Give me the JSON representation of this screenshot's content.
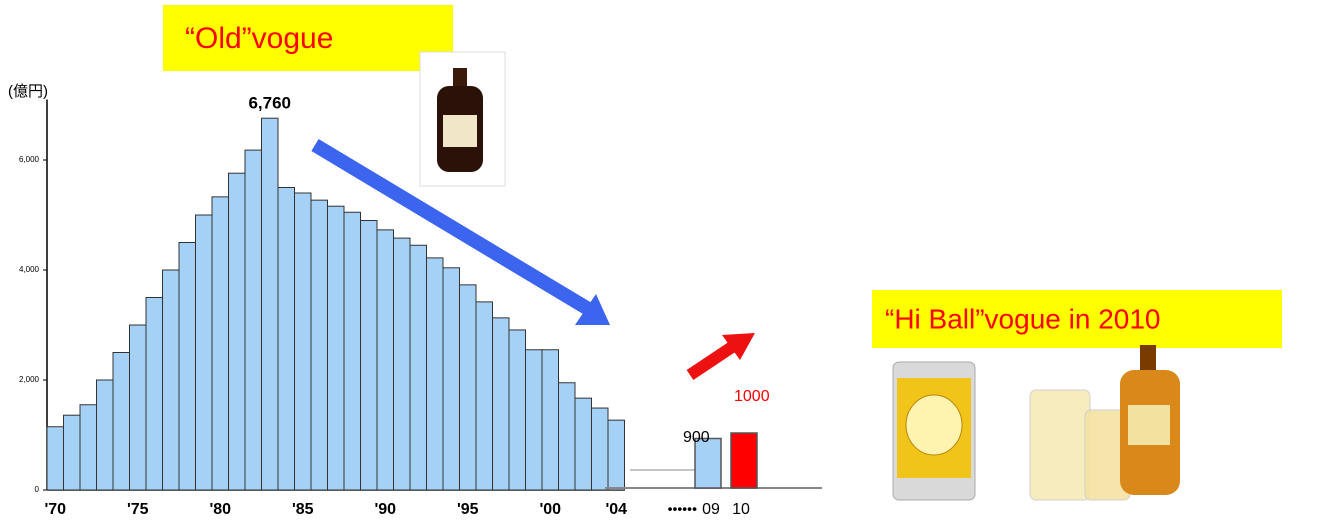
{
  "chart_data": [
    {
      "type": "bar",
      "title": "“Old”vogue",
      "y_label": "(億円)",
      "categories": [
        "'70",
        null,
        null,
        null,
        null,
        "'75",
        null,
        null,
        null,
        null,
        "'80",
        null,
        null,
        null,
        null,
        "'85",
        null,
        null,
        null,
        null,
        "'90",
        null,
        null,
        null,
        null,
        "'95",
        null,
        null,
        null,
        null,
        "'00",
        null,
        null,
        null,
        "'04"
      ],
      "values": [
        1150,
        1360,
        1550,
        2000,
        2500,
        3000,
        3500,
        4000,
        4500,
        5000,
        5330,
        5760,
        6180,
        6760,
        5500,
        5400,
        5270,
        5160,
        5050,
        4900,
        4730,
        4580,
        4450,
        4220,
        4040,
        3730,
        3420,
        3130,
        2910,
        2550,
        2550,
        1950,
        1670,
        1490,
        1270
      ],
      "value_labels": [
        null,
        null,
        null,
        null,
        null,
        null,
        null,
        null,
        null,
        null,
        null,
        null,
        null,
        "6,760",
        null,
        null,
        null,
        null,
        null,
        null,
        null,
        null,
        null,
        null,
        null,
        null,
        null,
        null,
        null,
        null,
        null,
        null,
        null,
        null,
        null
      ],
      "color": "#a6d1f7",
      "ylim": [
        0,
        7100
      ],
      "yticks": [
        0,
        {
          "value": 2000,
          "label": "2,000"
        },
        {
          "value": 4000,
          "label": "4,000"
        },
        {
          "value": 6000,
          "label": "6,000"
        }
      ]
    },
    {
      "type": "bar",
      "title": "“Hi Ball”vogue in 2010",
      "x_prefix": "••••••",
      "categories": [
        "09",
        "10"
      ],
      "values": [
        900,
        1000
      ],
      "value_labels": [
        "900",
        "1000"
      ],
      "colors": [
        "#a6d1f7",
        "#ff0000"
      ],
      "ylim": [
        0,
        1000
      ]
    }
  ]
}
